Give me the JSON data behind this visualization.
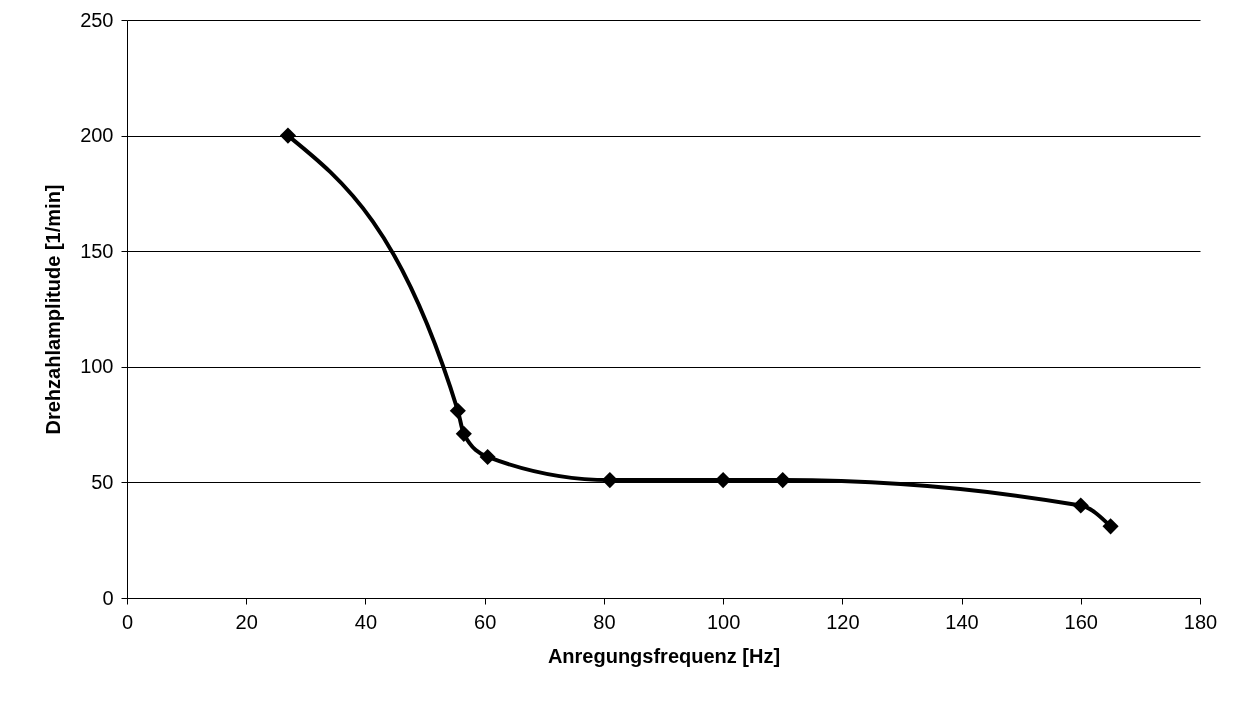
{
  "chart_data": {
    "type": "line",
    "xlabel": "Anregungsfrequenz [Hz]",
    "ylabel": "Drehzahlamplitude [1/min]",
    "x": [
      27,
      55.5,
      56.5,
      60.5,
      81,
      100,
      110,
      160,
      165
    ],
    "series": [
      {
        "color": "#000000",
        "values": [
          200,
          81,
          71,
          61,
          51,
          51,
          51,
          40,
          31
        ]
      }
    ],
    "xlim": [
      0,
      180
    ],
    "xticks": [
      0,
      20,
      40,
      60,
      80,
      100,
      120,
      140,
      160,
      180
    ],
    "ylim": [
      0,
      250
    ],
    "yticks": [
      0,
      50,
      100,
      150,
      200,
      250
    ],
    "grid": "y",
    "marker": "diamond",
    "line_style": "solid",
    "legend": false
  }
}
